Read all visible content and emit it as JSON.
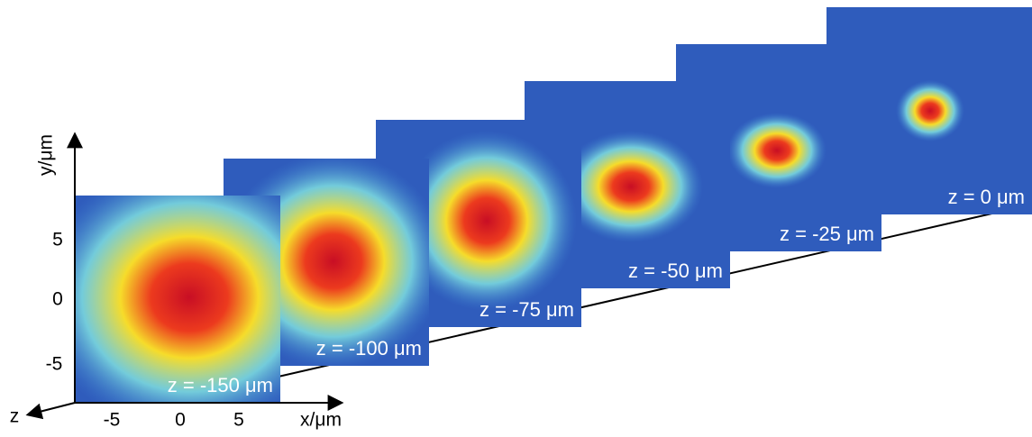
{
  "axes": {
    "y_label": "y/μm",
    "x_label": "x/μm",
    "z_label": "z",
    "y_ticks": [
      "5",
      "0",
      "-5"
    ],
    "x_ticks": [
      "-5",
      "0",
      "5"
    ]
  },
  "panels": [
    {
      "label": "z = 0 μm"
    },
    {
      "label": "z = -25 μm"
    },
    {
      "label": "z = -50 μm"
    },
    {
      "label": "z = -75 μm"
    },
    {
      "label": "z = -100 μm"
    },
    {
      "label": "z = -150 μm"
    }
  ]
}
